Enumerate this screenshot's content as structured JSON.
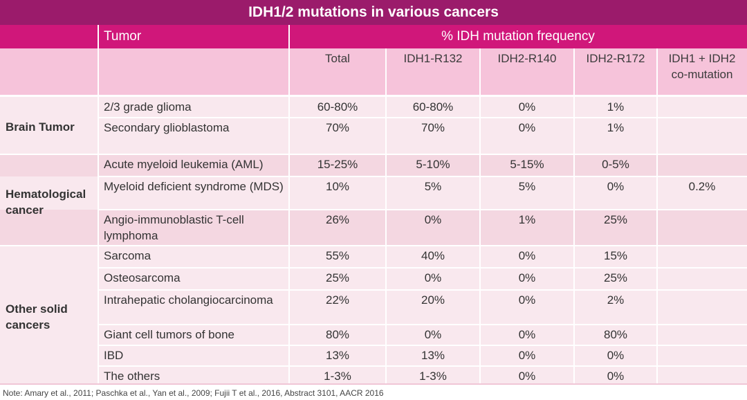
{
  "title": "IDH1/2 mutations in various cancers",
  "header": {
    "tumor": "Tumor",
    "frequency": "% IDH mutation frequency",
    "columns": [
      "Total",
      "IDH1-R132",
      "IDH2-R140",
      "IDH2-R172",
      "IDH1 + IDH2\nco-mutation"
    ]
  },
  "groups": [
    {
      "name": "Brain Tumor",
      "rows": [
        {
          "tumor": "2/3 grade glioma",
          "total": "60-80%",
          "r132": "60-80%",
          "r140": "0%",
          "r172": "1%",
          "co": ""
        },
        {
          "tumor": "Secondary glioblastoma",
          "total": "70%",
          "r132": "70%",
          "r140": "0%",
          "r172": "1%",
          "co": ""
        }
      ]
    },
    {
      "name": "Hematological\ncancer",
      "rows": [
        {
          "tumor": "Acute myeloid leukemia (AML)",
          "total": "15-25%",
          "r132": "5-10%",
          "r140": "5-15%",
          "r172": "0-5%",
          "co": ""
        },
        {
          "tumor": "Myeloid deficient syndrome (MDS)",
          "total": "10%",
          "r132": "5%",
          "r140": "5%",
          "r172": "0%",
          "co": "0.2%"
        },
        {
          "tumor": "Angio-immunoblastic T-cell\nlymphoma",
          "total": "26%",
          "r132": "0%",
          "r140": "1%",
          "r172": "25%",
          "co": ""
        }
      ]
    },
    {
      "name": "Other solid\ncancers",
      "rows": [
        {
          "tumor": "Sarcoma",
          "total": "55%",
          "r132": "40%",
          "r140": "0%",
          "r172": "15%",
          "co": ""
        },
        {
          "tumor": "Osteosarcoma",
          "total": "25%",
          "r132": "0%",
          "r140": "0%",
          "r172": "25%",
          "co": ""
        },
        {
          "tumor": "Intrahepatic cholangiocarcinoma",
          "total": "22%",
          "r132": "20%",
          "r140": "0%",
          "r172": "2%",
          "co": ""
        },
        {
          "tumor": "Giant cell tumors of bone",
          "total": "80%",
          "r132": "0%",
          "r140": "0%",
          "r172": "80%",
          "co": ""
        },
        {
          "tumor": "IBD",
          "total": "13%",
          "r132": "13%",
          "r140": "0%",
          "r172": "0%",
          "co": ""
        },
        {
          "tumor": "The others",
          "total": "1-3%",
          "r132": "1-3%",
          "r140": "0%",
          "r172": "0%",
          "co": ""
        }
      ]
    }
  ],
  "note": "Note: Amary et al., 2011; Paschka et al., Yan et al., 2009; Fujii T et al., 2016, Abstract 3101, AACR 2016",
  "colors": {
    "title_bg": "#9b1b6b",
    "header_bg": "#d0177a",
    "subheader_bg": "#f6c3da",
    "row_light": "#f9e8ee",
    "row_mid": "#f4d7e1"
  }
}
